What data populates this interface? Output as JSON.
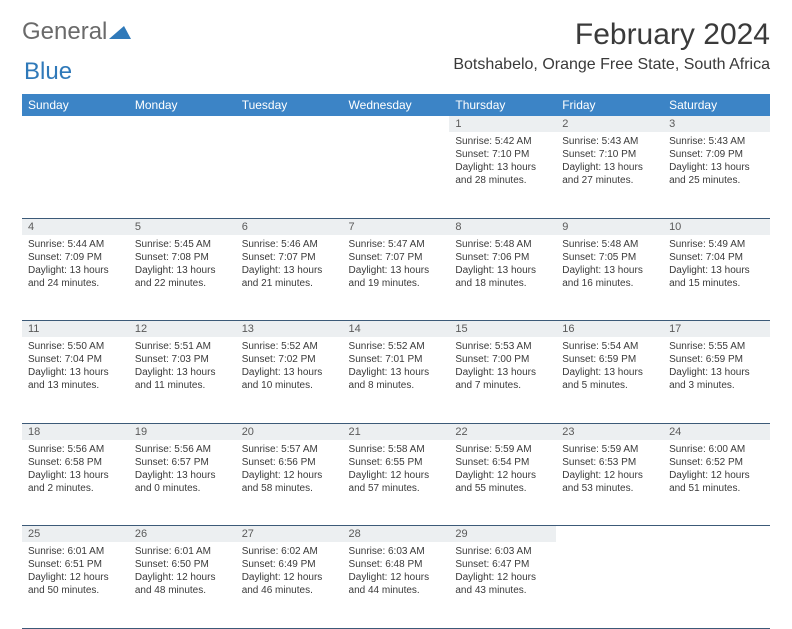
{
  "logo": {
    "text1": "General",
    "text2": "Blue"
  },
  "title": "February 2024",
  "location": "Botshabelo, Orange Free State, South Africa",
  "colors": {
    "header_bg": "#3c84c6",
    "header_fg": "#ffffff",
    "daynum_bg": "#eceff1",
    "border": "#3c5a78",
    "logo_gray": "#6a6a6a",
    "logo_blue": "#2f79b9"
  },
  "weekdays": [
    "Sunday",
    "Monday",
    "Tuesday",
    "Wednesday",
    "Thursday",
    "Friday",
    "Saturday"
  ],
  "weeks": [
    [
      null,
      null,
      null,
      null,
      {
        "n": "1",
        "sr": "Sunrise: 5:42 AM",
        "ss": "Sunset: 7:10 PM",
        "dl": "Daylight: 13 hours and 28 minutes."
      },
      {
        "n": "2",
        "sr": "Sunrise: 5:43 AM",
        "ss": "Sunset: 7:10 PM",
        "dl": "Daylight: 13 hours and 27 minutes."
      },
      {
        "n": "3",
        "sr": "Sunrise: 5:43 AM",
        "ss": "Sunset: 7:09 PM",
        "dl": "Daylight: 13 hours and 25 minutes."
      }
    ],
    [
      {
        "n": "4",
        "sr": "Sunrise: 5:44 AM",
        "ss": "Sunset: 7:09 PM",
        "dl": "Daylight: 13 hours and 24 minutes."
      },
      {
        "n": "5",
        "sr": "Sunrise: 5:45 AM",
        "ss": "Sunset: 7:08 PM",
        "dl": "Daylight: 13 hours and 22 minutes."
      },
      {
        "n": "6",
        "sr": "Sunrise: 5:46 AM",
        "ss": "Sunset: 7:07 PM",
        "dl": "Daylight: 13 hours and 21 minutes."
      },
      {
        "n": "7",
        "sr": "Sunrise: 5:47 AM",
        "ss": "Sunset: 7:07 PM",
        "dl": "Daylight: 13 hours and 19 minutes."
      },
      {
        "n": "8",
        "sr": "Sunrise: 5:48 AM",
        "ss": "Sunset: 7:06 PM",
        "dl": "Daylight: 13 hours and 18 minutes."
      },
      {
        "n": "9",
        "sr": "Sunrise: 5:48 AM",
        "ss": "Sunset: 7:05 PM",
        "dl": "Daylight: 13 hours and 16 minutes."
      },
      {
        "n": "10",
        "sr": "Sunrise: 5:49 AM",
        "ss": "Sunset: 7:04 PM",
        "dl": "Daylight: 13 hours and 15 minutes."
      }
    ],
    [
      {
        "n": "11",
        "sr": "Sunrise: 5:50 AM",
        "ss": "Sunset: 7:04 PM",
        "dl": "Daylight: 13 hours and 13 minutes."
      },
      {
        "n": "12",
        "sr": "Sunrise: 5:51 AM",
        "ss": "Sunset: 7:03 PM",
        "dl": "Daylight: 13 hours and 11 minutes."
      },
      {
        "n": "13",
        "sr": "Sunrise: 5:52 AM",
        "ss": "Sunset: 7:02 PM",
        "dl": "Daylight: 13 hours and 10 minutes."
      },
      {
        "n": "14",
        "sr": "Sunrise: 5:52 AM",
        "ss": "Sunset: 7:01 PM",
        "dl": "Daylight: 13 hours and 8 minutes."
      },
      {
        "n": "15",
        "sr": "Sunrise: 5:53 AM",
        "ss": "Sunset: 7:00 PM",
        "dl": "Daylight: 13 hours and 7 minutes."
      },
      {
        "n": "16",
        "sr": "Sunrise: 5:54 AM",
        "ss": "Sunset: 6:59 PM",
        "dl": "Daylight: 13 hours and 5 minutes."
      },
      {
        "n": "17",
        "sr": "Sunrise: 5:55 AM",
        "ss": "Sunset: 6:59 PM",
        "dl": "Daylight: 13 hours and 3 minutes."
      }
    ],
    [
      {
        "n": "18",
        "sr": "Sunrise: 5:56 AM",
        "ss": "Sunset: 6:58 PM",
        "dl": "Daylight: 13 hours and 2 minutes."
      },
      {
        "n": "19",
        "sr": "Sunrise: 5:56 AM",
        "ss": "Sunset: 6:57 PM",
        "dl": "Daylight: 13 hours and 0 minutes."
      },
      {
        "n": "20",
        "sr": "Sunrise: 5:57 AM",
        "ss": "Sunset: 6:56 PM",
        "dl": "Daylight: 12 hours and 58 minutes."
      },
      {
        "n": "21",
        "sr": "Sunrise: 5:58 AM",
        "ss": "Sunset: 6:55 PM",
        "dl": "Daylight: 12 hours and 57 minutes."
      },
      {
        "n": "22",
        "sr": "Sunrise: 5:59 AM",
        "ss": "Sunset: 6:54 PM",
        "dl": "Daylight: 12 hours and 55 minutes."
      },
      {
        "n": "23",
        "sr": "Sunrise: 5:59 AM",
        "ss": "Sunset: 6:53 PM",
        "dl": "Daylight: 12 hours and 53 minutes."
      },
      {
        "n": "24",
        "sr": "Sunrise: 6:00 AM",
        "ss": "Sunset: 6:52 PM",
        "dl": "Daylight: 12 hours and 51 minutes."
      }
    ],
    [
      {
        "n": "25",
        "sr": "Sunrise: 6:01 AM",
        "ss": "Sunset: 6:51 PM",
        "dl": "Daylight: 12 hours and 50 minutes."
      },
      {
        "n": "26",
        "sr": "Sunrise: 6:01 AM",
        "ss": "Sunset: 6:50 PM",
        "dl": "Daylight: 12 hours and 48 minutes."
      },
      {
        "n": "27",
        "sr": "Sunrise: 6:02 AM",
        "ss": "Sunset: 6:49 PM",
        "dl": "Daylight: 12 hours and 46 minutes."
      },
      {
        "n": "28",
        "sr": "Sunrise: 6:03 AM",
        "ss": "Sunset: 6:48 PM",
        "dl": "Daylight: 12 hours and 44 minutes."
      },
      {
        "n": "29",
        "sr": "Sunrise: 6:03 AM",
        "ss": "Sunset: 6:47 PM",
        "dl": "Daylight: 12 hours and 43 minutes."
      },
      null,
      null
    ]
  ]
}
